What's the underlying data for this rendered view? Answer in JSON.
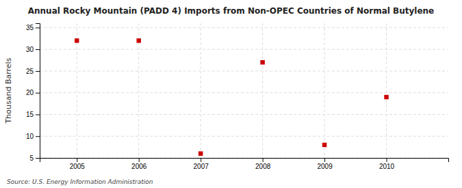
{
  "chart_data": {
    "type": "scatter",
    "title": "Annual Rocky Mountain (PADD 4) Imports from Non-OPEC Countries of Normal Butylene",
    "ylabel": "Thousand Barrels",
    "annotations": [
      "Source: U.S. Energy Information Administration"
    ],
    "x": [
      2005,
      2006,
      2007,
      2008,
      2009,
      2010
    ],
    "values": [
      32,
      32,
      6,
      27,
      8,
      19
    ],
    "color": "#cc0000",
    "marker": "square",
    "xlim": [
      2004.4,
      2011.0
    ],
    "ylim": [
      5,
      36
    ],
    "xticks": [
      2005,
      2006,
      2007,
      2008,
      2009,
      2010
    ],
    "yticks": [
      5,
      10,
      15,
      20,
      25,
      30,
      35
    ],
    "grid": true
  }
}
